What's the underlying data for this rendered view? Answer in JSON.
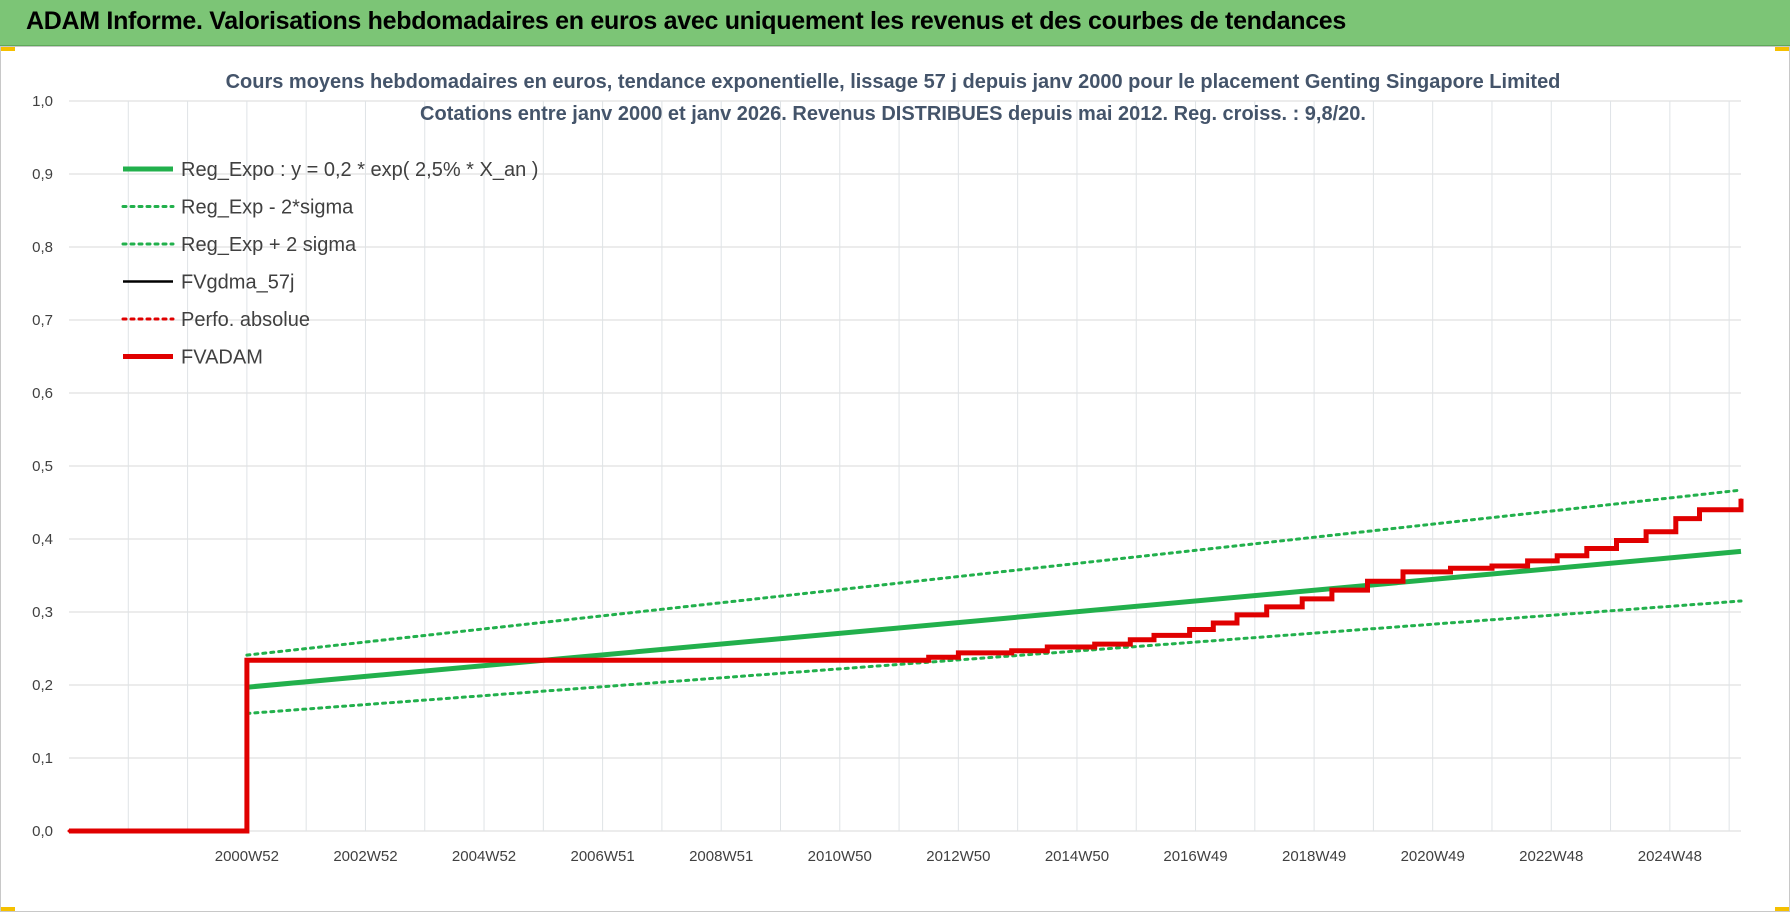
{
  "banner": {
    "title": "ADAM Informe. Valorisations hebdomadaires en euros avec uniquement les revenus et des courbes de tendances"
  },
  "chart_data": {
    "type": "line",
    "title": "Cours moyens hebdomadaires en euros, tendance exponentielle, lissage 57 j depuis janv 2000  pour le placement Genting Singapore Limited",
    "subtitle": "Cotations entre janv 2000 et janv 2026. Revenus DISTRIBUES depuis mai 2012. Reg. croiss. : 9,8/20.",
    "xlabel": "",
    "ylabel": "",
    "ylim": [
      0,
      1
    ],
    "y_ticks": [
      "0,0",
      "0,1",
      "0,2",
      "0,3",
      "0,4",
      "0,5",
      "0,6",
      "0,7",
      "0,8",
      "0,9",
      "1,0"
    ],
    "x_range": [
      1998,
      2026.2
    ],
    "x_ticks": [
      {
        "label": "2000W52",
        "x": 2001
      },
      {
        "label": "2002W52",
        "x": 2003
      },
      {
        "label": "2004W52",
        "x": 2005
      },
      {
        "label": "2006W51",
        "x": 2007
      },
      {
        "label": "2008W51",
        "x": 2009
      },
      {
        "label": "2010W50",
        "x": 2011
      },
      {
        "label": "2012W50",
        "x": 2013
      },
      {
        "label": "2014W50",
        "x": 2015
      },
      {
        "label": "2016W49",
        "x": 2017
      },
      {
        "label": "2018W49",
        "x": 2019
      },
      {
        "label": "2020W49",
        "x": 2021
      },
      {
        "label": "2022W48",
        "x": 2023
      },
      {
        "label": "2024W48",
        "x": 2025
      }
    ],
    "grid": true,
    "legend_position": "top-left",
    "series": [
      {
        "name": "Reg_Expo : y = 0,2 * exp( 2,5% *  X_an )",
        "color": "#22b04c",
        "style": "solid-thick",
        "x": [
          2001,
          2026.2
        ],
        "y": [
          0.197,
          0.383
        ]
      },
      {
        "name": "Reg_Exp - 2*sigma",
        "color": "#22b04c",
        "style": "dotted",
        "x": [
          2001,
          2026.2
        ],
        "y": [
          0.161,
          0.315
        ]
      },
      {
        "name": "Reg_Exp + 2 sigma",
        "color": "#22b04c",
        "style": "dotted",
        "x": [
          2001,
          2026.2
        ],
        "y": [
          0.241,
          0.467
        ]
      },
      {
        "name": "FVgdma_57j",
        "color": "#000000",
        "style": "solid",
        "x": [
          1998,
          2001,
          2001,
          2011.8,
          2012.5,
          2013,
          2013.9,
          2014.5,
          2015.3,
          2015.9,
          2016.3,
          2016.9,
          2017.3,
          2017.7,
          2018.2,
          2018.8,
          2019.3,
          2019.9,
          2020.5,
          2021.3,
          2022,
          2022.6,
          2023.1,
          2023.6,
          2024.1,
          2024.6,
          2025.1,
          2025.5,
          2026.2
        ],
        "y": [
          0,
          0,
          0.234,
          0.234,
          0.238,
          0.244,
          0.247,
          0.252,
          0.256,
          0.262,
          0.268,
          0.276,
          0.285,
          0.296,
          0.307,
          0.318,
          0.33,
          0.342,
          0.355,
          0.36,
          0.363,
          0.37,
          0.377,
          0.387,
          0.398,
          0.41,
          0.428,
          0.44,
          0.455
        ]
      },
      {
        "name": "Perfo. absolue",
        "color": "#e00000",
        "style": "dotted",
        "x": [
          1998,
          2001,
          2001,
          2011.8,
          2012.5,
          2013,
          2013.9,
          2014.5,
          2015.3,
          2015.9,
          2016.3,
          2016.9,
          2017.3,
          2017.7,
          2018.2,
          2018.8,
          2019.3,
          2019.9,
          2020.5,
          2021.3,
          2022,
          2022.6,
          2023.1,
          2023.6,
          2024.1,
          2024.6,
          2025.1,
          2025.5,
          2026.2
        ],
        "y": [
          0,
          0,
          0.234,
          0.234,
          0.238,
          0.244,
          0.247,
          0.252,
          0.256,
          0.262,
          0.268,
          0.276,
          0.285,
          0.296,
          0.307,
          0.318,
          0.33,
          0.342,
          0.355,
          0.36,
          0.363,
          0.37,
          0.377,
          0.387,
          0.398,
          0.41,
          0.428,
          0.44,
          0.455
        ]
      },
      {
        "name": "FVADAM",
        "color": "#e00000",
        "style": "solid-thick",
        "x": [
          1998,
          2001,
          2001,
          2011.8,
          2012.5,
          2013,
          2013.9,
          2014.5,
          2015.3,
          2015.9,
          2016.3,
          2016.9,
          2017.3,
          2017.7,
          2018.2,
          2018.8,
          2019.3,
          2019.9,
          2020.5,
          2021.3,
          2022,
          2022.6,
          2023.1,
          2023.6,
          2024.1,
          2024.6,
          2025.1,
          2025.5,
          2026.2
        ],
        "y": [
          0,
          0,
          0.234,
          0.234,
          0.238,
          0.244,
          0.247,
          0.252,
          0.256,
          0.262,
          0.268,
          0.276,
          0.285,
          0.296,
          0.307,
          0.318,
          0.33,
          0.342,
          0.355,
          0.36,
          0.363,
          0.37,
          0.377,
          0.387,
          0.398,
          0.41,
          0.428,
          0.44,
          0.455
        ]
      }
    ]
  }
}
